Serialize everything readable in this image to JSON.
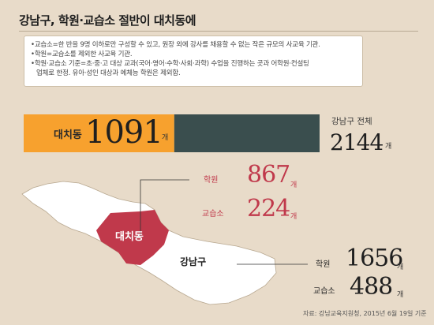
{
  "title": "강남구, 학원·교습소 절반이 대치동에",
  "notes": [
    "•교습소=한 반을 9명 이하로만 구성할 수 있고, 원장 외에 강사를 채용할 수 없는 작은 규모의 사교육 기관.",
    "•학원=교습소를 제외한 사교육 기관.",
    "•학원·교습소 기준=초·중·고 대상 교과(국어·영어·수학·사회·과학) 수업을 진행하는 곳과 어학원·컨설팅",
    "업체로 한정. 유아·성인 대상과 예체능 학원은 제외함."
  ],
  "labels": {
    "daechi": "대치동",
    "gangnam_total": "강남구 전체",
    "unit": "개",
    "academy": "학원",
    "tutoring": "교습소",
    "gangnam": "강남구",
    "daechi_map": "대치동"
  },
  "chart_data": {
    "type": "bar",
    "title": "강남구, 학원·교습소 절반이 대치동에",
    "orientation": "horizontal",
    "categories": [
      "대치동",
      "강남구 전체"
    ],
    "values": [
      1091,
      2144
    ],
    "display": {
      "daechi_total": "1091",
      "gangnam_total": "2144",
      "daechi_academy": "867",
      "daechi_tutoring": "224",
      "gangnam_academy": "1656",
      "gangnam_tutoring": "488"
    },
    "breakdown": {
      "대치동": {
        "학원": 867,
        "교습소": 224
      },
      "강남구": {
        "학원": 1656,
        "교습소": 488
      }
    },
    "colors": {
      "daechi": "#f7a12e",
      "rest": "#3a4e4e",
      "map_fill": "#ffffff",
      "daechi_fill": "#c0394b",
      "background": "#e8dbc9"
    }
  },
  "source": "자료: 강남교육지원청, 2015년 6월 19일 기준"
}
